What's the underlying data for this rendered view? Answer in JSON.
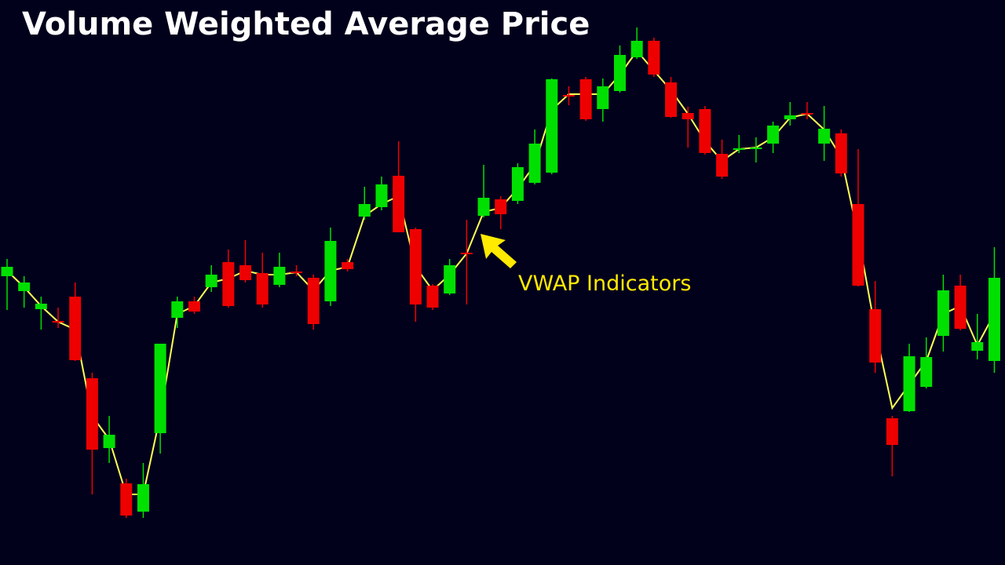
{
  "chart_data": {
    "type": "candlestick",
    "title": "Volume Weighted Average Price",
    "annotation": "VWAP Indicators",
    "ylim": [
      0,
      720
    ],
    "up_color": "#00e000",
    "down_color": "#ee0000",
    "line_color": "#ffff55",
    "annotation_color": "#ffea00",
    "open": [
      368,
      349,
      326,
      311,
      342,
      238,
      149,
      104,
      68,
      168,
      315,
      336,
      354,
      386,
      382,
      372,
      357,
      374,
      366,
      336,
      386,
      444,
      456,
      496,
      428,
      356,
      346,
      398,
      445,
      466,
      464,
      487,
      500,
      599,
      619,
      581,
      604,
      647,
      668,
      615,
      576,
      581,
      524,
      529,
      530,
      537,
      568,
      576,
      537,
      550,
      460,
      326,
      187,
      196,
      227,
      292,
      356,
      273,
      260
    ],
    "high": [
      390,
      368,
      342,
      328,
      360,
      245,
      190,
      110,
      130,
      282,
      342,
      342,
      382,
      402,
      414,
      398,
      398,
      382,
      370,
      430,
      390,
      482,
      495,
      540,
      430,
      358,
      390,
      440,
      510,
      470,
      512,
      555,
      620,
      610,
      622,
      620,
      662,
      685,
      672,
      622,
      584,
      585,
      542,
      548,
      545,
      565,
      590,
      590,
      585,
      555,
      530,
      362,
      190,
      282,
      290,
      370,
      370,
      320,
      405
    ],
    "low": [
      325,
      328,
      300,
      302,
      260,
      90,
      130,
      60,
      60,
      142,
      302,
      320,
      348,
      328,
      360,
      328,
      354,
      368,
      300,
      330,
      374,
      440,
      452,
      424,
      310,
      325,
      344,
      332,
      443,
      428,
      460,
      485,
      498,
      586,
      566,
      565,
      602,
      645,
      622,
      570,
      532,
      523,
      492,
      525,
      513,
      525,
      560,
      568,
      515,
      495,
      355,
      245,
      113,
      195,
      225,
      272,
      299,
      262,
      245
    ],
    "close": [
      380,
      360,
      333,
      309,
      261,
      147,
      166,
      63,
      103,
      282,
      336,
      323,
      370,
      330,
      363,
      332,
      380,
      372,
      307,
      413,
      377,
      460,
      485,
      424,
      332,
      328,
      382,
      396,
      468,
      447,
      507,
      537,
      619,
      597,
      568,
      610,
      650,
      668,
      625,
      571,
      568,
      525,
      495,
      531,
      532,
      560,
      573,
      574,
      556,
      499,
      356,
      258,
      153,
      266,
      265,
      350,
      301,
      284,
      366
    ],
    "vwap": [
      375,
      354,
      330,
      310,
      300,
      190,
      160,
      90,
      90,
      190,
      320,
      330,
      360,
      365,
      375,
      370,
      370,
      373,
      350,
      375,
      380,
      445,
      460,
      470,
      380,
      350,
      370,
      397,
      450,
      455,
      480,
      510,
      580,
      600,
      600,
      600,
      625,
      655,
      630,
      605,
      575,
      540,
      515,
      530,
      532,
      545,
      570,
      575,
      555,
      520,
      420,
      300,
      200,
      230,
      260,
      320,
      330,
      280,
      320
    ]
  }
}
